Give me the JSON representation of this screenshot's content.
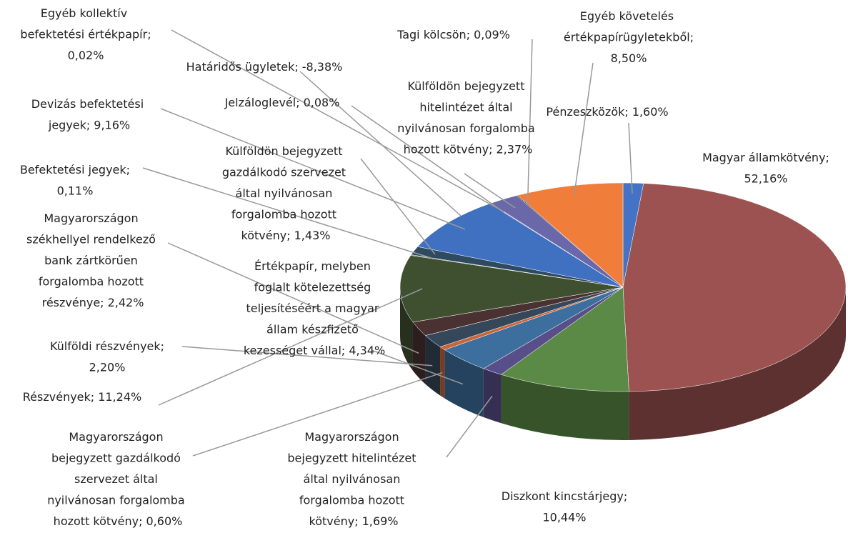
{
  "chart_data": {
    "type": "pie",
    "categories": [
      "Pénzeszközök;",
      "Magyar államkötvény;",
      "Diszkont kincstárjegy;",
      "Magyarországon bejegyzett hitelintézet által nyilvánosan forgalomba hozott kötvény;",
      "Értékpapír, melyben foglalt kötelezettség teljesítéséért a magyar állam készfizető kezességet vállal;",
      "Magyarországon bejegyzett gazdálkodó szervezet által nyilvánosan forgalomba hozott kötvény;",
      "Külföldi részvények;",
      "Magyarországon székhellyel rendelkező bank zártkörűen forgalomba hozott részvénye;",
      "Részvények;",
      "Befektetési jegyek;",
      "Külföldön bejegyzett gazdálkodó szervezet által nyilvánosan forgalomba hozott kötvény;",
      "Devizás befektetési jegyek;",
      "Jelzáloglevél;",
      "Egyéb kollektív befektetési értékpapír;",
      "Határidős ügyletek;",
      "Külföldön bejegyzett hitelintézet által nyilvánosan forgalomba hozott kötvény;",
      "Tagi kölcsön;",
      "Egyéb követelés értékpapírügyletekből;"
    ],
    "values": [
      1.6,
      52.16,
      10.44,
      1.69,
      4.34,
      0.6,
      2.2,
      2.42,
      11.24,
      0.11,
      1.43,
      9.16,
      0.08,
      0.02,
      -8.38,
      2.37,
      0.09,
      8.5
    ],
    "value_labels": [
      "1,60%",
      "52,16%",
      "10,44%",
      "1,69%",
      "4,34%",
      "0,60%",
      "2,20%",
      "2,42%",
      "11,24%",
      "0,11%",
      "1,43%",
      "9,16%",
      "0,08%",
      "0,02%",
      "-8,38%",
      "2,37%",
      "0,09%",
      "8,50%"
    ],
    "colors": [
      "#4472c4",
      "#9b5250",
      "#5b8a46",
      "#584f8a",
      "#3d6f9e",
      "#c8643a",
      "#35485a",
      "#4a3232",
      "#3f5030",
      "#2c3e50",
      "#2f4a60",
      "#4070c0",
      "#6b4f8f",
      "#3b3b5c",
      "#888888",
      "#6a68a8",
      "#333333",
      "#f07d3a"
    ]
  }
}
